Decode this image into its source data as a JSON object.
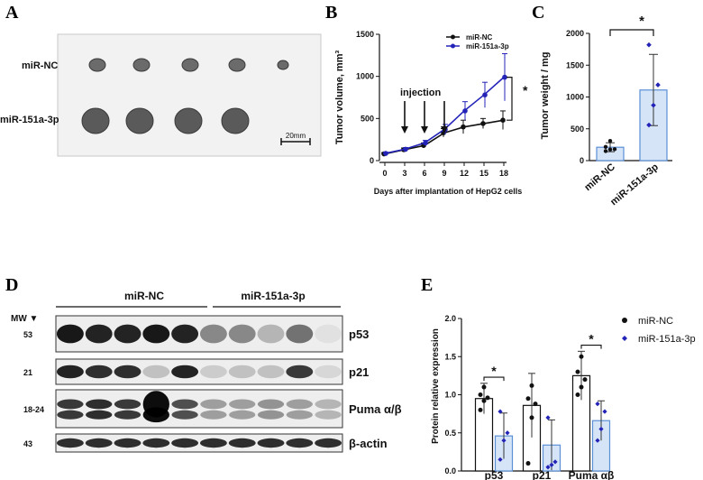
{
  "panels": {
    "a": "A",
    "b": "B",
    "c": "C",
    "d": "D",
    "e": "E"
  },
  "panel_a": {
    "row_labels": [
      "miR-NC",
      "miR-151a-3p"
    ],
    "scale_bar": "20mm",
    "tumor_counts": [
      5,
      4
    ]
  },
  "blot": {
    "group_labels": [
      "miR-NC",
      "miR-151a-3p"
    ],
    "mw_label": "MW ▼",
    "lanes_per_group": 5,
    "rows": [
      {
        "mw": "53",
        "protein": "p53",
        "intensity": [
          0.95,
          0.9,
          0.9,
          0.95,
          0.9,
          0.45,
          0.45,
          0.25,
          0.55,
          0.0
        ]
      },
      {
        "mw": "21",
        "protein": "p21",
        "intensity": [
          0.9,
          0.85,
          0.85,
          0.2,
          0.9,
          0.15,
          0.2,
          0.2,
          0.8,
          0.1
        ]
      },
      {
        "mw": "18-24",
        "protein": "Puma α/β",
        "intensity": [
          0.8,
          0.85,
          0.8,
          1.0,
          0.7,
          0.35,
          0.35,
          0.4,
          0.35,
          0.25
        ]
      },
      {
        "mw": "43",
        "protein": "β-actin",
        "intensity": [
          0.85,
          0.85,
          0.85,
          0.85,
          0.85,
          0.85,
          0.85,
          0.85,
          0.85,
          0.85
        ]
      }
    ]
  },
  "colors": {
    "nc": "#111111",
    "treat": "#2323b8",
    "bar_fill": "#d6e4f7",
    "bar_edge": "#5b8fd6"
  },
  "chart_data": [
    {
      "id": "B",
      "type": "line",
      "xlabel": "Days after implantation of HepG2 cells",
      "ylabel": "Tumor volume, mm³",
      "x": [
        0,
        3,
        6,
        9,
        12,
        15,
        18
      ],
      "xlim": [
        0,
        18
      ],
      "ylim": [
        0,
        1500
      ],
      "yticks": [
        0,
        500,
        1000,
        1500
      ],
      "series": [
        {
          "name": "miR-NC",
          "values": [
            80,
            130,
            180,
            330,
            400,
            440,
            480
          ],
          "err": [
            15,
            20,
            30,
            50,
            80,
            60,
            110
          ]
        },
        {
          "name": "miR-151a-3p",
          "values": [
            85,
            135,
            210,
            370,
            590,
            780,
            990
          ],
          "err": [
            15,
            20,
            30,
            60,
            110,
            150,
            280
          ]
        }
      ],
      "annotations": [
        "injection",
        "*"
      ],
      "injection_days": [
        3,
        6,
        9
      ],
      "legend": "top-right"
    },
    {
      "id": "C",
      "type": "bar",
      "ylabel": "Tumor weight / mg",
      "categories": [
        "miR-NC",
        "miR-151a-3p"
      ],
      "values": [
        210,
        1110
      ],
      "err": [
        70,
        560
      ],
      "points": [
        [
          150,
          175,
          180,
          215,
          310
        ],
        [
          560,
          870,
          1190,
          1820
        ]
      ],
      "ylim": [
        0,
        2000
      ],
      "yticks": [
        0,
        500,
        1000,
        1500,
        2000
      ],
      "annotation": "*"
    },
    {
      "id": "E",
      "type": "bar",
      "ylabel": "Protein relative expression",
      "categories": [
        "p53",
        "p21",
        "Puma αβ"
      ],
      "ylim": [
        0,
        2.0
      ],
      "yticks": [
        "0.0",
        "0.5",
        "1.0",
        "1.5",
        "2.0"
      ],
      "series": [
        {
          "name": "miR-NC",
          "values": [
            0.95,
            0.86,
            1.25
          ],
          "err": [
            0.2,
            0.42,
            0.32
          ],
          "points": [
            [
              0.8,
              0.92,
              0.96,
              1.0,
              1.1
            ],
            [
              0.1,
              0.7,
              0.88,
              0.95,
              1.12
            ],
            [
              1.0,
              1.1,
              1.2,
              1.3,
              1.5
            ]
          ]
        },
        {
          "name": "miR-151a-3p",
          "values": [
            0.46,
            0.34,
            0.66
          ],
          "err": [
            0.3,
            0.33,
            0.26
          ],
          "points": [
            [
              0.15,
              0.4,
              0.5,
              0.78
            ],
            [
              0.05,
              0.08,
              0.12,
              0.7
            ],
            [
              0.4,
              0.55,
              0.78,
              0.88
            ]
          ]
        }
      ],
      "significance": [
        "*",
        "",
        "*"
      ],
      "legend": "right"
    }
  ]
}
